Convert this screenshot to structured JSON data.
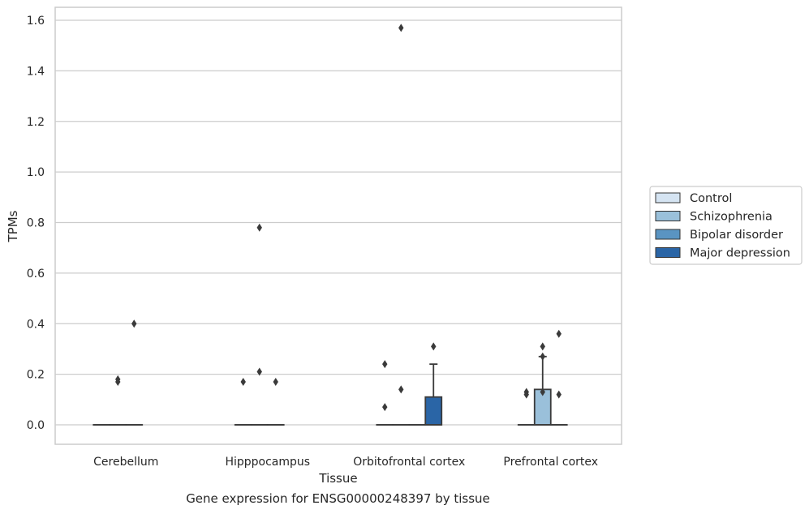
{
  "caption": "Gene expression for ENSG00000248397 by tissue",
  "chart_data": {
    "type": "box",
    "title": "",
    "xlabel": "Tissue",
    "ylabel": "TPMs",
    "ylim": [
      -0.08,
      1.65
    ],
    "yticks": [
      0.0,
      0.2,
      0.4,
      0.6,
      0.8,
      1.0,
      1.2,
      1.4,
      1.6
    ],
    "ytick_labels": [
      "0.0",
      "0.2",
      "0.4",
      "0.6",
      "0.8",
      "1.0",
      "1.2",
      "1.4",
      "1.6"
    ],
    "grid": "horizontal",
    "legend_placement": "right",
    "categories": [
      "Cerebellum",
      "Hipppocampus",
      "Orbitofrontal cortex",
      "Prefrontal cortex"
    ],
    "series": [
      {
        "name": "Control",
        "color": "#d5e4f2",
        "boxes": [
          {
            "q1": 0,
            "median": 0,
            "q3": 0,
            "whisker_low": 0,
            "whisker_high": 0,
            "outliers": []
          },
          {
            "q1": 0,
            "median": 0,
            "q3": 0,
            "whisker_low": 0,
            "whisker_high": 0,
            "outliers": [
              0.17
            ]
          },
          {
            "q1": 0,
            "median": 0,
            "q3": 0,
            "whisker_low": 0,
            "whisker_high": 0,
            "outliers": [
              0.24,
              0.07
            ]
          },
          {
            "q1": 0,
            "median": 0,
            "q3": 0,
            "whisker_low": 0,
            "whisker_high": 0,
            "outliers": [
              0.13,
              0.12
            ]
          }
        ]
      },
      {
        "name": "Schizophrenia",
        "color": "#9ac0da",
        "boxes": [
          {
            "q1": 0,
            "median": 0,
            "q3": 0,
            "whisker_low": 0,
            "whisker_high": 0,
            "outliers": [
              0.18,
              0.17
            ]
          },
          {
            "q1": 0,
            "median": 0,
            "q3": 0,
            "whisker_low": 0,
            "whisker_high": 0,
            "outliers": [
              0.78,
              0.21
            ]
          },
          {
            "q1": 0,
            "median": 0,
            "q3": 0,
            "whisker_low": 0,
            "whisker_high": 0,
            "outliers": [
              1.57,
              0.14
            ]
          },
          {
            "q1": 0,
            "median": 0,
            "q3": 0.14,
            "whisker_low": 0,
            "whisker_high": 0.27,
            "outliers": [
              0.31,
              0.27,
              0.13
            ]
          }
        ]
      },
      {
        "name": "Bipolar disorder",
        "color": "#5a94c2",
        "boxes": [
          {
            "q1": 0,
            "median": 0,
            "q3": 0,
            "whisker_low": 0,
            "whisker_high": 0,
            "outliers": [
              0.4
            ]
          },
          {
            "q1": 0,
            "median": 0,
            "q3": 0,
            "whisker_low": 0,
            "whisker_high": 0,
            "outliers": [
              0.17
            ]
          },
          {
            "q1": 0,
            "median": 0,
            "q3": 0,
            "whisker_low": 0,
            "whisker_high": 0,
            "outliers": []
          },
          {
            "q1": 0,
            "median": 0,
            "q3": 0,
            "whisker_low": 0,
            "whisker_high": 0,
            "outliers": [
              0.36,
              0.12
            ]
          }
        ]
      },
      {
        "name": "Major depression",
        "color": "#2a65a6",
        "boxes": [
          null,
          null,
          {
            "q1": 0,
            "median": 0,
            "q3": 0.11,
            "whisker_low": 0,
            "whisker_high": 0.24,
            "outliers": [
              0.31
            ]
          },
          null
        ]
      }
    ]
  }
}
